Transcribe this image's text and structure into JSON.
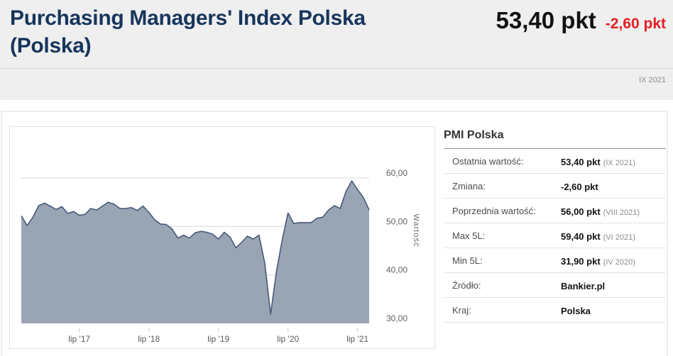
{
  "header": {
    "title_line1": "Purchasing Managers' Index Polska",
    "title_line2": "(Polska)",
    "current_value": "53,40 pkt",
    "change": "-2,60 pkt",
    "period": "IX 2021"
  },
  "panel": {
    "title": "PMI Polska",
    "rows": [
      {
        "label": "Ostatnia wartość:",
        "value": "53,40 pkt",
        "sub": "(IX 2021)"
      },
      {
        "label": "Zmiana:",
        "value": "-2,60 pkt",
        "sub": ""
      },
      {
        "label": "Poprzednia wartość:",
        "value": "56,00 pkt",
        "sub": "(VIII 2021)"
      },
      {
        "label": "Max 5L:",
        "value": "59,40 pkt",
        "sub": "(VI 2021)"
      },
      {
        "label": "Min 5L:",
        "value": "31,90 pkt",
        "sub": "(IV 2020)"
      },
      {
        "label": "Źródło:",
        "value": "Bankier.pl",
        "sub": ""
      },
      {
        "label": "Kraj:",
        "value": "Polska",
        "sub": ""
      }
    ]
  },
  "chart_data": {
    "type": "area",
    "title": "",
    "xlabel": "",
    "ylabel": "Wartość",
    "x_unit": "month",
    "x_start": "IX 2016",
    "x_end": "IX 2021",
    "values": [
      52.2,
      50.2,
      51.9,
      54.3,
      54.8,
      54.2,
      53.5,
      54.1,
      52.7,
      53.1,
      52.3,
      52.5,
      53.7,
      53.4,
      54.2,
      55.0,
      54.6,
      53.7,
      53.7,
      53.9,
      53.3,
      54.2,
      52.9,
      51.4,
      50.5,
      50.4,
      49.5,
      47.6,
      48.2,
      47.6,
      48.7,
      49.0,
      48.8,
      48.4,
      47.4,
      48.8,
      47.8,
      45.6,
      46.7,
      48.0,
      47.4,
      48.2,
      42.4,
      31.9,
      40.6,
      47.2,
      52.8,
      50.6,
      50.8,
      50.8,
      50.8,
      51.7,
      51.9,
      53.4,
      54.3,
      53.7,
      57.2,
      59.4,
      57.6,
      56.0,
      53.4
    ],
    "ylim": [
      30,
      60
    ],
    "ytick_values": [
      60,
      50,
      40,
      30
    ],
    "ytick_labels": [
      "60,00",
      "50,00",
      "40,00",
      "30,00"
    ],
    "xtick_indices": [
      10,
      22,
      34,
      46,
      58
    ],
    "xtick_labels": [
      "lip '17",
      "lip '18",
      "lip '19",
      "lip '20",
      "lip '21"
    ],
    "grid": "horizontal",
    "legend": "none",
    "area_fill": "#9aa5b4",
    "line_color": "#46597a"
  }
}
